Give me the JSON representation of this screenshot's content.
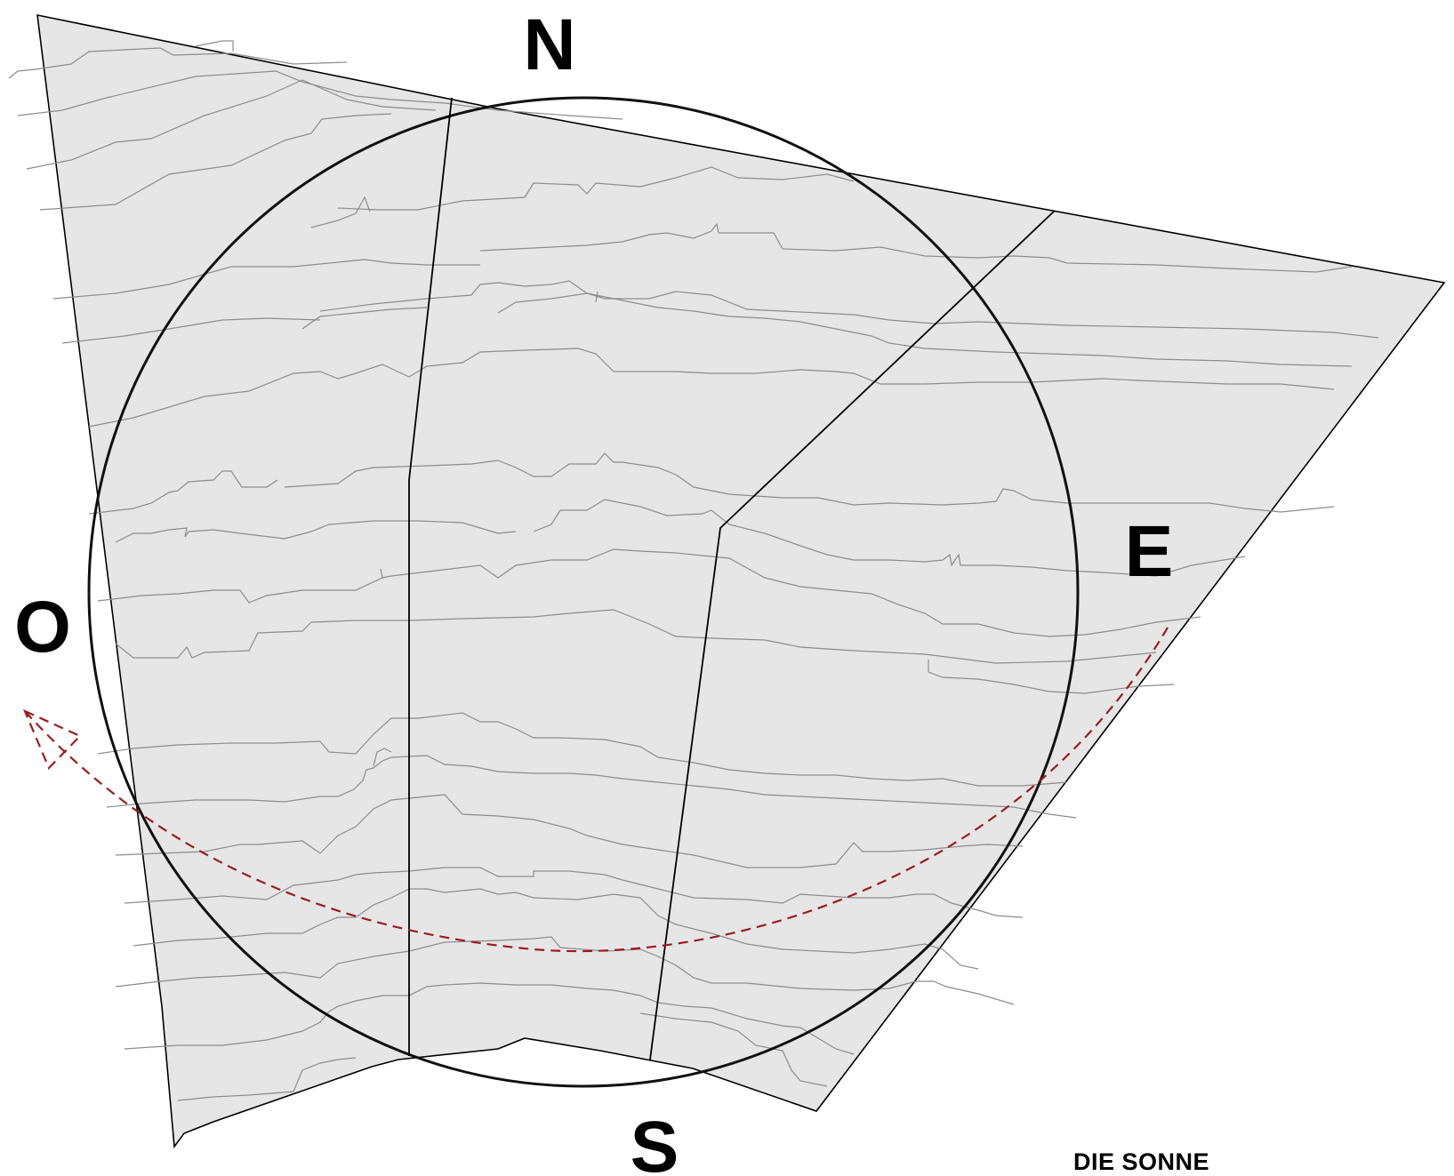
{
  "directions": {
    "north": "N",
    "east": "E",
    "south": "S",
    "west": "O"
  },
  "caption": "DIE SONNE",
  "colors": {
    "plot_fill": "#e6e6e6",
    "contour": "#8c8c8c",
    "boundary": "#000000",
    "circle": "#111111",
    "sun_path": "#9b1c1c"
  },
  "icons": {
    "sun_path_arrow": "dashed-arc-arrow-icon"
  }
}
